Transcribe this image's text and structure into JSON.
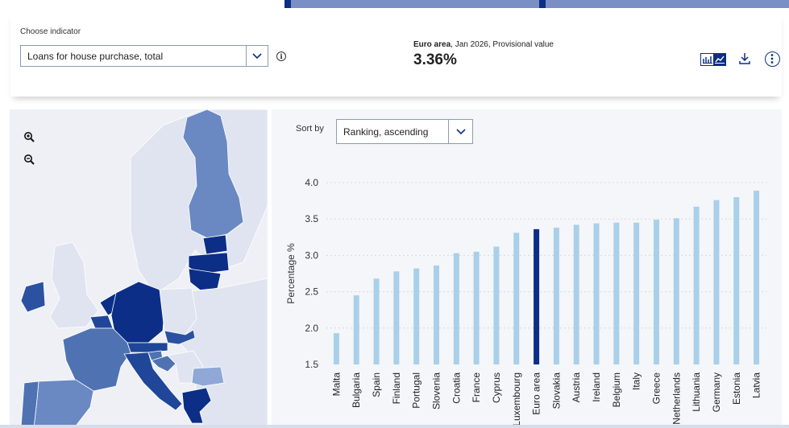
{
  "header": {
    "choose_label": "Choose indicator",
    "indicator_value": "Loans for house purchase, total",
    "euro_area_label": "Euro area",
    "period_label": ", Jan 2026, Provisional value",
    "headline_value": "3.36%"
  },
  "icons": {
    "info": "info-icon",
    "chart_toggle": "bar-line-toggle-icon",
    "download": "download-icon",
    "more": "more-options-icon",
    "zoom_in": "zoom-in-icon",
    "zoom_out": "zoom-out-icon"
  },
  "colors": {
    "accent": "#0c2e86",
    "bar_default": "#a9d0e8",
    "bar_highlight": "#0c2e86",
    "map_dark": "#0c2e86",
    "map_mid": "#4f72b3",
    "map_light": "#8fa8d6",
    "map_base": "#dfe4f0"
  },
  "sort": {
    "label": "Sort by",
    "value": "Ranking, ascending"
  },
  "chart_data": {
    "type": "bar",
    "ylabel": "Percentage %",
    "ylim": [
      1.5,
      4.0
    ],
    "yticks": [
      "1.5",
      "2.0",
      "2.5",
      "3.0",
      "3.5",
      "4.0"
    ],
    "categories": [
      "Malta",
      "Bulgaria",
      "Spain",
      "Finland",
      "Portugal",
      "Slovenia",
      "Croatia",
      "France",
      "Cyprus",
      "Luxembourg",
      "Euro area",
      "Slovakia",
      "Austria",
      "Ireland",
      "Belgium",
      "Italy",
      "Greece",
      "Netherlands",
      "Lithuania",
      "Germany",
      "Estonia",
      "Latvia"
    ],
    "values": [
      1.93,
      2.45,
      2.68,
      2.78,
      2.82,
      2.86,
      3.03,
      3.05,
      3.12,
      3.31,
      3.36,
      3.38,
      3.42,
      3.44,
      3.45,
      3.45,
      3.49,
      3.51,
      3.67,
      3.76,
      3.8,
      3.89
    ],
    "highlight": "Euro area",
    "grid": true
  }
}
